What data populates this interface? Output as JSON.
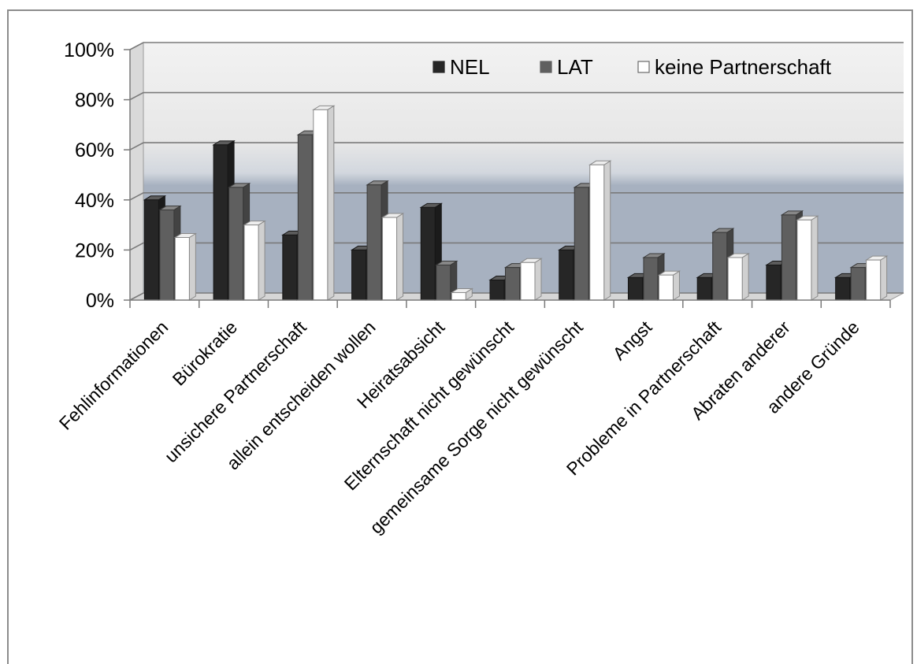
{
  "chart_data": {
    "type": "bar",
    "title": "",
    "xlabel": "",
    "ylabel": "",
    "ylim": [
      0,
      100
    ],
    "y_ticks": [
      "0%",
      "20%",
      "40%",
      "60%",
      "80%",
      "100%"
    ],
    "y_tick_values": [
      0,
      20,
      40,
      60,
      80,
      100
    ],
    "grid": true,
    "three_d": true,
    "legend_position": "top-right",
    "categories": [
      "Fehlinformationen",
      "Bürokratie",
      "unsichere Partnerschaft",
      "allein entscheiden wollen",
      "Heiratsabsicht",
      "Elternschaft nicht gewünscht",
      "gemeinsame Sorge nicht gewünscht",
      "Angst",
      "Probleme in Partnerschaft",
      "Abraten anderer",
      "andere Gründe"
    ],
    "series": [
      {
        "name": "NEL",
        "color": "#262626",
        "values": [
          40,
          62,
          26,
          20,
          37,
          8,
          20,
          9,
          9,
          14,
          9
        ]
      },
      {
        "name": "LAT",
        "color": "#5f5f5f",
        "values": [
          36,
          45,
          66,
          46,
          14,
          13,
          45,
          17,
          27,
          34,
          13
        ]
      },
      {
        "name": "keine Partnerschaft",
        "color": "#ffffff",
        "values": [
          25,
          30,
          76,
          33,
          3,
          15,
          54,
          10,
          17,
          32,
          16
        ]
      }
    ]
  }
}
